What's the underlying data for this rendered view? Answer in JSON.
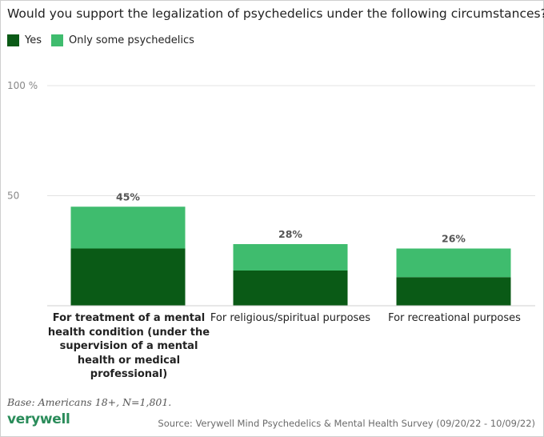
{
  "chart_data": {
    "type": "bar",
    "stacked": true,
    "title": "Would you support the legalization of psychedelics under the following circumstances?",
    "categories": [
      "For treatment of a mental health condition (under the supervision of a mental health or medical professional)",
      "For religious/spiritual purposes",
      "For recreational purposes"
    ],
    "series": [
      {
        "name": "Yes",
        "color": "#0a5a16",
        "values": [
          26,
          16,
          13
        ]
      },
      {
        "name": "Only some psychedelics",
        "color": "#3fbc6e",
        "values": [
          19,
          12,
          13
        ]
      }
    ],
    "totals": [
      45,
      28,
      26
    ],
    "total_labels": [
      "45%",
      "28%",
      "26%"
    ],
    "yticks": [
      {
        "value": 50,
        "label": "50"
      },
      {
        "value": 100,
        "label": "100 %"
      }
    ],
    "ylim": [
      0,
      100
    ],
    "grid": true,
    "legend_position": "top-left",
    "highlighted_category_index": 0
  },
  "footer": {
    "base_note": "Base: Americans 18+, N=1,801.",
    "logo_text": "verywell",
    "source": "Source: Verywell Mind Psychedelics & Mental Health Survey (09/20/22 - 10/09/22)"
  }
}
